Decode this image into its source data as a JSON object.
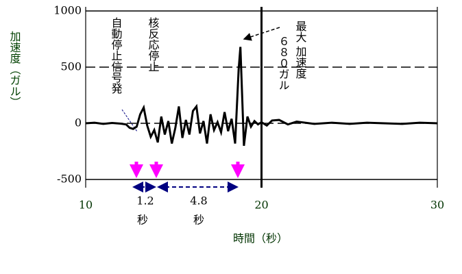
{
  "chart_data": {
    "type": "line",
    "y_label": "加速度（ガル）",
    "x_label": "時間（秒）",
    "xlim": [
      10,
      30
    ],
    "xticks": [
      10,
      20,
      30
    ],
    "ylim": [
      -500,
      1000
    ],
    "yticks": [
      -500,
      0,
      500,
      1000
    ],
    "x": [
      10,
      10.5,
      11,
      11.5,
      12,
      12.3,
      12.5,
      12.7,
      12.9,
      13.1,
      13.3,
      13.5,
      13.7,
      13.9,
      14.1,
      14.3,
      14.5,
      14.7,
      14.9,
      15.1,
      15.3,
      15.5,
      15.7,
      15.9,
      16.1,
      16.3,
      16.5,
      16.7,
      16.9,
      17.1,
      17.3,
      17.5,
      17.7,
      17.9,
      18.1,
      18.3,
      18.5,
      18.7,
      18.8,
      19.0,
      19.2,
      19.4,
      19.6,
      19.8,
      20,
      20.3,
      20.6,
      21,
      21.5,
      22,
      23,
      24,
      25,
      26,
      27,
      28,
      29,
      30
    ],
    "series": [
      {
        "color": "#000000",
        "values": [
          0,
          5,
          -5,
          3,
          -3,
          -10,
          -40,
          -50,
          -30,
          80,
          140,
          -20,
          -120,
          -60,
          -170,
          60,
          -100,
          20,
          -180,
          -40,
          150,
          -130,
          30,
          -100,
          110,
          150,
          -90,
          20,
          -180,
          80,
          -60,
          10,
          -80,
          100,
          -70,
          40,
          -180,
          480,
          680,
          -200,
          60,
          -30,
          20,
          -10,
          10,
          -20,
          25,
          30,
          -10,
          15,
          -5,
          5,
          -5,
          5,
          0,
          -5,
          5,
          0
        ]
      }
    ],
    "annotations": {
      "signal": "自動停止信号発",
      "reactor": "核反応停止",
      "max_a": "最大 加速度",
      "max_b": "６８０ガル",
      "gap1": "1.2",
      "gap1_unit": "秒",
      "gap2": "4.8",
      "gap2_unit": "秒"
    }
  }
}
